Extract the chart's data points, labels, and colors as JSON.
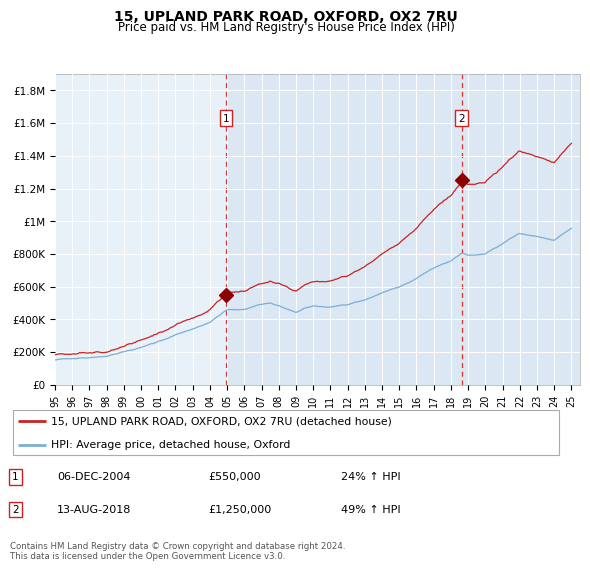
{
  "title": "15, UPLAND PARK ROAD, OXFORD, OX2 7RU",
  "subtitle": "Price paid vs. HM Land Registry's House Price Index (HPI)",
  "ylim": [
    0,
    1900000
  ],
  "yticks": [
    0,
    200000,
    400000,
    600000,
    800000,
    1000000,
    1200000,
    1400000,
    1600000,
    1800000
  ],
  "ytick_labels": [
    "£0",
    "£200K",
    "£400K",
    "£600K",
    "£800K",
    "£1M",
    "£1.2M",
    "£1.4M",
    "£1.6M",
    "£1.8M"
  ],
  "x_start_year": 1995,
  "x_end_year": 2025,
  "transaction1_date": 2004.92,
  "transaction1_price": 550000,
  "transaction2_date": 2018.62,
  "transaction2_price": 1250000,
  "legend_entries": [
    "15, UPLAND PARK ROAD, OXFORD, OX2 7RU (detached house)",
    "HPI: Average price, detached house, Oxford"
  ],
  "annotation1_date": "06-DEC-2004",
  "annotation1_price": "£550,000",
  "annotation1_hpi": "24% ↑ HPI",
  "annotation2_date": "13-AUG-2018",
  "annotation2_price": "£1,250,000",
  "annotation2_hpi": "49% ↑ HPI",
  "footer": "Contains HM Land Registry data © Crown copyright and database right 2024.\nThis data is licensed under the Open Government Licence v3.0.",
  "hpi_color": "#7bafd4",
  "red_color": "#cc2222",
  "marker_color": "#8B0000",
  "bg_color": "#dce9f5",
  "plot_bg_color": "#e8f0f8"
}
